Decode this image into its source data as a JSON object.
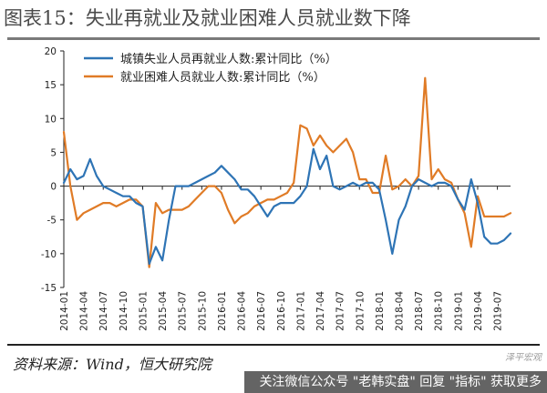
{
  "figure": {
    "title": "图表15：失业再就业及就业困难人员就业数下降",
    "source": "资料来源：Wind，恒大研究院",
    "watermark": "关注微信公众号 \"老韩实盘\" 回复 \"指标\" 获取更多",
    "watermark_brand": "泽平宏观"
  },
  "chart_data": {
    "type": "line",
    "title": "",
    "xlabel": "",
    "ylabel": "",
    "ylim": [
      -15,
      20
    ],
    "yticks": [
      -15,
      -10,
      -5,
      0,
      5,
      10,
      15,
      20
    ],
    "grid": false,
    "legend_position": "top-left",
    "x_start": "2014-01",
    "x_tick_labels": [
      "2014-01",
      "2014-04",
      "2014-07",
      "2014-10",
      "2015-01",
      "2015-04",
      "2015-07",
      "2015-10",
      "2016-01",
      "2016-04",
      "2016-07",
      "2016-10",
      "2017-01",
      "2017-04",
      "2017-07",
      "2017-10",
      "2018-01",
      "2018-04",
      "2018-07",
      "2018-10",
      "2019-01",
      "2019-04",
      "2019-07"
    ],
    "series": [
      {
        "name": "城镇失业人员再就业人数:累计同比（%）",
        "color": "#2e74b5",
        "values": [
          0.5,
          2.5,
          1.0,
          1.5,
          4.0,
          1.5,
          0.0,
          -0.5,
          -1.0,
          -1.5,
          -1.5,
          -2.5,
          -3.0,
          -11.5,
          -9.0,
          -11.0,
          -5.0,
          0.0,
          0.0,
          0.0,
          0.5,
          1.0,
          1.5,
          2.0,
          3.0,
          2.0,
          1.0,
          -0.5,
          -0.5,
          -1.5,
          -3.0,
          -4.5,
          -3.0,
          -2.5,
          -2.5,
          -2.5,
          -1.5,
          0.0,
          5.5,
          2.5,
          4.5,
          0.0,
          -0.5,
          0.0,
          0.5,
          0.0,
          0.5,
          0.5,
          -0.5,
          -5.0,
          -10.0,
          -5.0,
          -3.0,
          0.0,
          1.0,
          0.5,
          0.0,
          0.5,
          0.5,
          0.0,
          -2.0,
          -3.5,
          1.0,
          -2.5,
          -7.5,
          -8.5,
          -8.5,
          -8.0,
          -7.0
        ]
      },
      {
        "name": "就业困难人员就业人数:累计同比（%）",
        "color": "#e07b26",
        "values": [
          8.0,
          0.0,
          -5.0,
          -4.0,
          -3.5,
          -3.0,
          -2.5,
          -2.5,
          -3.0,
          -2.5,
          -2.0,
          -2.0,
          -3.0,
          -12.0,
          -2.5,
          -4.0,
          -3.5,
          -3.5,
          -3.5,
          -3.0,
          -2.0,
          -1.0,
          0.0,
          0.0,
          -1.0,
          -3.5,
          -5.5,
          -4.5,
          -4.0,
          -3.0,
          -2.5,
          -2.0,
          -2.0,
          -1.5,
          -1.0,
          0.5,
          9.0,
          8.5,
          6.0,
          7.5,
          6.0,
          5.0,
          6.0,
          7.0,
          5.0,
          1.0,
          1.0,
          -1.0,
          -1.0,
          4.5,
          -0.5,
          0.0,
          1.0,
          0.0,
          1.5,
          16.0,
          1.0,
          2.5,
          1.0,
          0.5,
          -2.0,
          -4.0,
          -9.0,
          -1.5,
          -4.5,
          -4.5,
          -4.5,
          -4.5,
          -4.0
        ]
      }
    ]
  }
}
